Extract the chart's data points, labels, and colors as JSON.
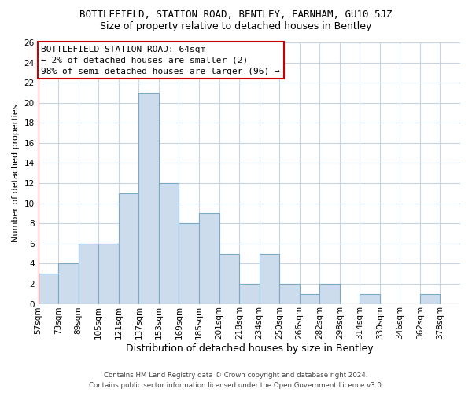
{
  "title": "BOTTLEFIELD, STATION ROAD, BENTLEY, FARNHAM, GU10 5JZ",
  "subtitle": "Size of property relative to detached houses in Bentley",
  "xlabel": "Distribution of detached houses by size in Bentley",
  "ylabel": "Number of detached properties",
  "bin_labels": [
    "57sqm",
    "73sqm",
    "89sqm",
    "105sqm",
    "121sqm",
    "137sqm",
    "153sqm",
    "169sqm",
    "185sqm",
    "201sqm",
    "218sqm",
    "234sqm",
    "250sqm",
    "266sqm",
    "282sqm",
    "298sqm",
    "314sqm",
    "330sqm",
    "346sqm",
    "362sqm",
    "378sqm"
  ],
  "bar_heights": [
    3,
    4,
    6,
    6,
    11,
    21,
    12,
    8,
    9,
    5,
    2,
    5,
    2,
    1,
    2,
    0,
    1,
    0,
    0,
    1,
    0
  ],
  "bar_color": "#ccdcec",
  "bar_edge_color": "#7aaac8",
  "ylim": [
    0,
    26
  ],
  "yticks": [
    0,
    2,
    4,
    6,
    8,
    10,
    12,
    14,
    16,
    18,
    20,
    22,
    24,
    26
  ],
  "annotation_title": "BOTTLEFIELD STATION ROAD: 64sqm",
  "annotation_line1": "← 2% of detached houses are smaller (2)",
  "annotation_line2": "98% of semi-detached houses are larger (96) →",
  "annotation_box_color": "#ffffff",
  "annotation_box_edge": "#cc0000",
  "red_line_x": 57,
  "footer_line1": "Contains HM Land Registry data © Crown copyright and database right 2024.",
  "footer_line2": "Contains public sector information licensed under the Open Government Licence v3.0.",
  "background_color": "#ffffff",
  "grid_color": "#c8d4e0",
  "title_fontsize": 9,
  "subtitle_fontsize": 9,
  "ylabel_fontsize": 8,
  "xlabel_fontsize": 9,
  "tick_fontsize": 7.5,
  "annot_fontsize": 8
}
